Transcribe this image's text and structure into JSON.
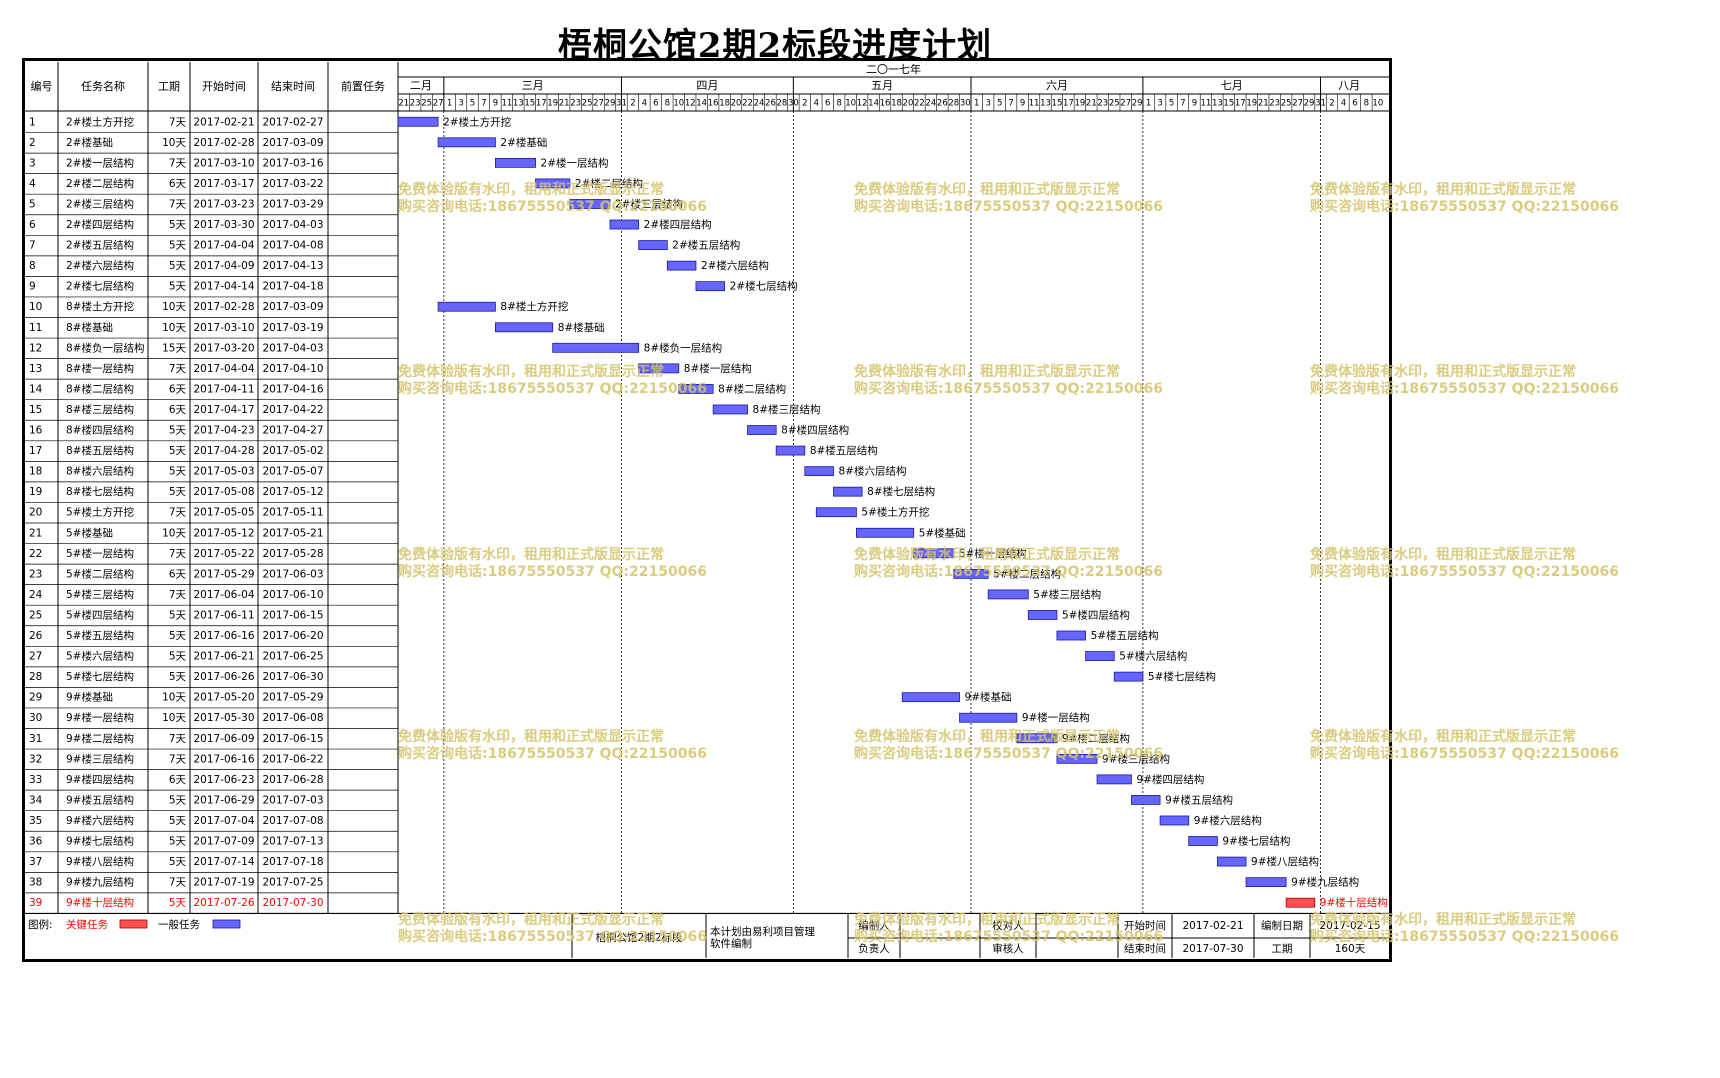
{
  "title": "梧桐公馆2期2标段进度计划",
  "table_headers": [
    "编号",
    "任务名称",
    "工期",
    "开始时间",
    "结束时间",
    "前置任务"
  ],
  "year_label": "二〇一七年",
  "months": [
    {
      "label": "二月",
      "start": "2017-02-21",
      "end": "2017-02-28"
    },
    {
      "label": "三月",
      "start": "2017-03-01",
      "end": "2017-03-31"
    },
    {
      "label": "四月",
      "start": "2017-04-01",
      "end": "2017-04-30"
    },
    {
      "label": "五月",
      "start": "2017-05-01",
      "end": "2017-05-31"
    },
    {
      "label": "六月",
      "start": "2017-06-01",
      "end": "2017-06-30"
    },
    {
      "label": "七月",
      "start": "2017-07-01",
      "end": "2017-07-31"
    },
    {
      "label": "八月",
      "start": "2017-08-01",
      "end": "2017-08-10"
    }
  ],
  "chart_data": {
    "type": "gantt",
    "title": "梧桐公馆2期2标段进度计划",
    "x_range": [
      "2017-02-21",
      "2017-08-11"
    ],
    "tasks": [
      {
        "id": "1",
        "name": "2#楼土方开挖",
        "duration": "7天",
        "start": "2017-02-21",
        "end": "2017-02-27"
      },
      {
        "id": "2",
        "name": "2#楼基础",
        "duration": "10天",
        "start": "2017-02-28",
        "end": "2017-03-09"
      },
      {
        "id": "3",
        "name": "2#楼一层结构",
        "duration": "7天",
        "start": "2017-03-10",
        "end": "2017-03-16"
      },
      {
        "id": "4",
        "name": "2#楼二层结构",
        "duration": "6天",
        "start": "2017-03-17",
        "end": "2017-03-22"
      },
      {
        "id": "5",
        "name": "2#楼三层结构",
        "duration": "7天",
        "start": "2017-03-23",
        "end": "2017-03-29"
      },
      {
        "id": "6",
        "name": "2#楼四层结构",
        "duration": "5天",
        "start": "2017-03-30",
        "end": "2017-04-03"
      },
      {
        "id": "7",
        "name": "2#楼五层结构",
        "duration": "5天",
        "start": "2017-04-04",
        "end": "2017-04-08"
      },
      {
        "id": "8",
        "name": "2#楼六层结构",
        "duration": "5天",
        "start": "2017-04-09",
        "end": "2017-04-13"
      },
      {
        "id": "9",
        "name": "2#楼七层结构",
        "duration": "5天",
        "start": "2017-04-14",
        "end": "2017-04-18"
      },
      {
        "id": "10",
        "name": "8#楼土方开挖",
        "duration": "10天",
        "start": "2017-02-28",
        "end": "2017-03-09"
      },
      {
        "id": "11",
        "name": "8#楼基础",
        "duration": "10天",
        "start": "2017-03-10",
        "end": "2017-03-19"
      },
      {
        "id": "12",
        "name": "8#楼负一层结构",
        "duration": "15天",
        "start": "2017-03-20",
        "end": "2017-04-03"
      },
      {
        "id": "13",
        "name": "8#楼一层结构",
        "duration": "7天",
        "start": "2017-04-04",
        "end": "2017-04-10"
      },
      {
        "id": "14",
        "name": "8#楼二层结构",
        "duration": "6天",
        "start": "2017-04-11",
        "end": "2017-04-16"
      },
      {
        "id": "15",
        "name": "8#楼三层结构",
        "duration": "6天",
        "start": "2017-04-17",
        "end": "2017-04-22"
      },
      {
        "id": "16",
        "name": "8#楼四层结构",
        "duration": "5天",
        "start": "2017-04-23",
        "end": "2017-04-27"
      },
      {
        "id": "17",
        "name": "8#楼五层结构",
        "duration": "5天",
        "start": "2017-04-28",
        "end": "2017-05-02"
      },
      {
        "id": "18",
        "name": "8#楼六层结构",
        "duration": "5天",
        "start": "2017-05-03",
        "end": "2017-05-07"
      },
      {
        "id": "19",
        "name": "8#楼七层结构",
        "duration": "5天",
        "start": "2017-05-08",
        "end": "2017-05-12"
      },
      {
        "id": "20",
        "name": "5#楼土方开挖",
        "duration": "7天",
        "start": "2017-05-05",
        "end": "2017-05-11"
      },
      {
        "id": "21",
        "name": "5#楼基础",
        "duration": "10天",
        "start": "2017-05-12",
        "end": "2017-05-21"
      },
      {
        "id": "22",
        "name": "5#楼一层结构",
        "duration": "7天",
        "start": "2017-05-22",
        "end": "2017-05-28"
      },
      {
        "id": "23",
        "name": "5#楼二层结构",
        "duration": "6天",
        "start": "2017-05-29",
        "end": "2017-06-03"
      },
      {
        "id": "24",
        "name": "5#楼三层结构",
        "duration": "7天",
        "start": "2017-06-04",
        "end": "2017-06-10"
      },
      {
        "id": "25",
        "name": "5#楼四层结构",
        "duration": "5天",
        "start": "2017-06-11",
        "end": "2017-06-15"
      },
      {
        "id": "26",
        "name": "5#楼五层结构",
        "duration": "5天",
        "start": "2017-06-16",
        "end": "2017-06-20"
      },
      {
        "id": "27",
        "name": "5#楼六层结构",
        "duration": "5天",
        "start": "2017-06-21",
        "end": "2017-06-25"
      },
      {
        "id": "28",
        "name": "5#楼七层结构",
        "duration": "5天",
        "start": "2017-06-26",
        "end": "2017-06-30"
      },
      {
        "id": "29",
        "name": "9#楼基础",
        "duration": "10天",
        "start": "2017-05-20",
        "end": "2017-05-29"
      },
      {
        "id": "30",
        "name": "9#楼一层结构",
        "duration": "10天",
        "start": "2017-05-30",
        "end": "2017-06-08"
      },
      {
        "id": "31",
        "name": "9#楼二层结构",
        "duration": "7天",
        "start": "2017-06-09",
        "end": "2017-06-15"
      },
      {
        "id": "32",
        "name": "9#楼三层结构",
        "duration": "7天",
        "start": "2017-06-16",
        "end": "2017-06-22"
      },
      {
        "id": "33",
        "name": "9#楼四层结构",
        "duration": "6天",
        "start": "2017-06-23",
        "end": "2017-06-28"
      },
      {
        "id": "34",
        "name": "9#楼五层结构",
        "duration": "5天",
        "start": "2017-06-29",
        "end": "2017-07-03"
      },
      {
        "id": "35",
        "name": "9#楼六层结构",
        "duration": "5天",
        "start": "2017-07-04",
        "end": "2017-07-08"
      },
      {
        "id": "36",
        "name": "9#楼七层结构",
        "duration": "5天",
        "start": "2017-07-09",
        "end": "2017-07-13"
      },
      {
        "id": "37",
        "name": "9#楼八层结构",
        "duration": "5天",
        "start": "2017-07-14",
        "end": "2017-07-18"
      },
      {
        "id": "38",
        "name": "9#楼九层结构",
        "duration": "7天",
        "start": "2017-07-19",
        "end": "2017-07-25"
      },
      {
        "id": "39",
        "name": "9#楼十层结构",
        "duration": "5天",
        "start": "2017-07-26",
        "end": "2017-07-30",
        "critical": true
      }
    ]
  },
  "colors": {
    "normal": "#6666ff",
    "critical": "#ff5050",
    "critical_text": "#ff0000",
    "watermark": "#d4c36a"
  },
  "legend": {
    "label": "图例:",
    "critical": "关键任务",
    "normal": "一般任务"
  },
  "footer": {
    "project": "梧桐公馆2期2标段",
    "note": "本计划由易利项目管理软件编制",
    "editor_label": "编制人",
    "checker_label": "校对人",
    "owner_label": "负责人",
    "reviewer_label": "审核人",
    "start_label": "开始时间",
    "start_value": "2017-02-21",
    "end_label": "结束时间",
    "end_value": "2017-07-30",
    "date_label": "编制日期",
    "date_value": "2017-02-15",
    "duration_label": "工期",
    "duration_value": "160天"
  },
  "watermark": {
    "line1": "免费体验版有水印，租用和正式版显示正常",
    "line2": "购买咨询电话:18675550537 QQ:22150066"
  }
}
